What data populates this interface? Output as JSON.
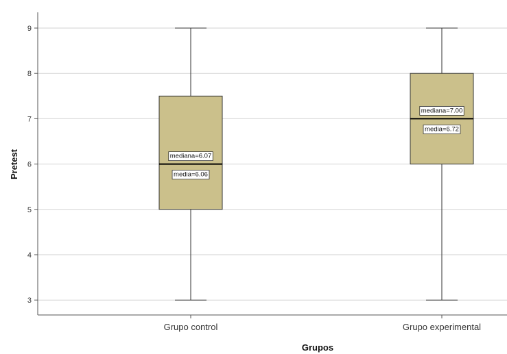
{
  "chart_data": {
    "type": "boxplot",
    "xlabel": "Grupos",
    "ylabel": "Pretest",
    "ylim": [
      2.6,
      9.3
    ],
    "yticks": [
      "3",
      "4",
      "5",
      "6",
      "7",
      "8",
      "9"
    ],
    "grid": true,
    "box_color": "#cbc08b",
    "categories": [
      "Grupo control",
      "Grupo experimental"
    ],
    "series": [
      {
        "category": "Grupo control",
        "min": 3,
        "q1": 5,
        "median": 6,
        "q3": 7.5,
        "max": 9,
        "annotations": [
          "mediana=6.07",
          "media=6.06"
        ]
      },
      {
        "category": "Grupo experimental",
        "min": 3,
        "q1": 6,
        "median": 7,
        "q3": 8,
        "max": 9,
        "annotations": [
          "mediana=7.00",
          "media=6.72"
        ]
      }
    ]
  }
}
